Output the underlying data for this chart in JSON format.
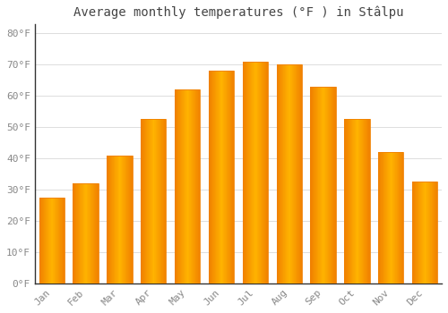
{
  "title": "Average monthly temperatures (°F ) in Stâlpu",
  "months": [
    "Jan",
    "Feb",
    "Mar",
    "Apr",
    "May",
    "Jun",
    "Jul",
    "Aug",
    "Sep",
    "Oct",
    "Nov",
    "Dec"
  ],
  "values": [
    27.5,
    32.0,
    41.0,
    52.5,
    62.0,
    68.0,
    71.0,
    70.0,
    63.0,
    52.5,
    42.0,
    32.5
  ],
  "bar_color_center": "#FFB300",
  "bar_color_edge": "#F08000",
  "background_color": "#FFFFFF",
  "grid_color": "#DDDDDD",
  "ytick_labels": [
    "0°F",
    "10°F",
    "20°F",
    "30°F",
    "40°F",
    "50°F",
    "60°F",
    "70°F",
    "80°F"
  ],
  "ytick_values": [
    0,
    10,
    20,
    30,
    40,
    50,
    60,
    70,
    80
  ],
  "ylim": [
    0,
    83
  ],
  "title_fontsize": 10,
  "tick_fontsize": 8,
  "font_family": "monospace",
  "tick_color": "#888888",
  "spine_color": "#888888"
}
